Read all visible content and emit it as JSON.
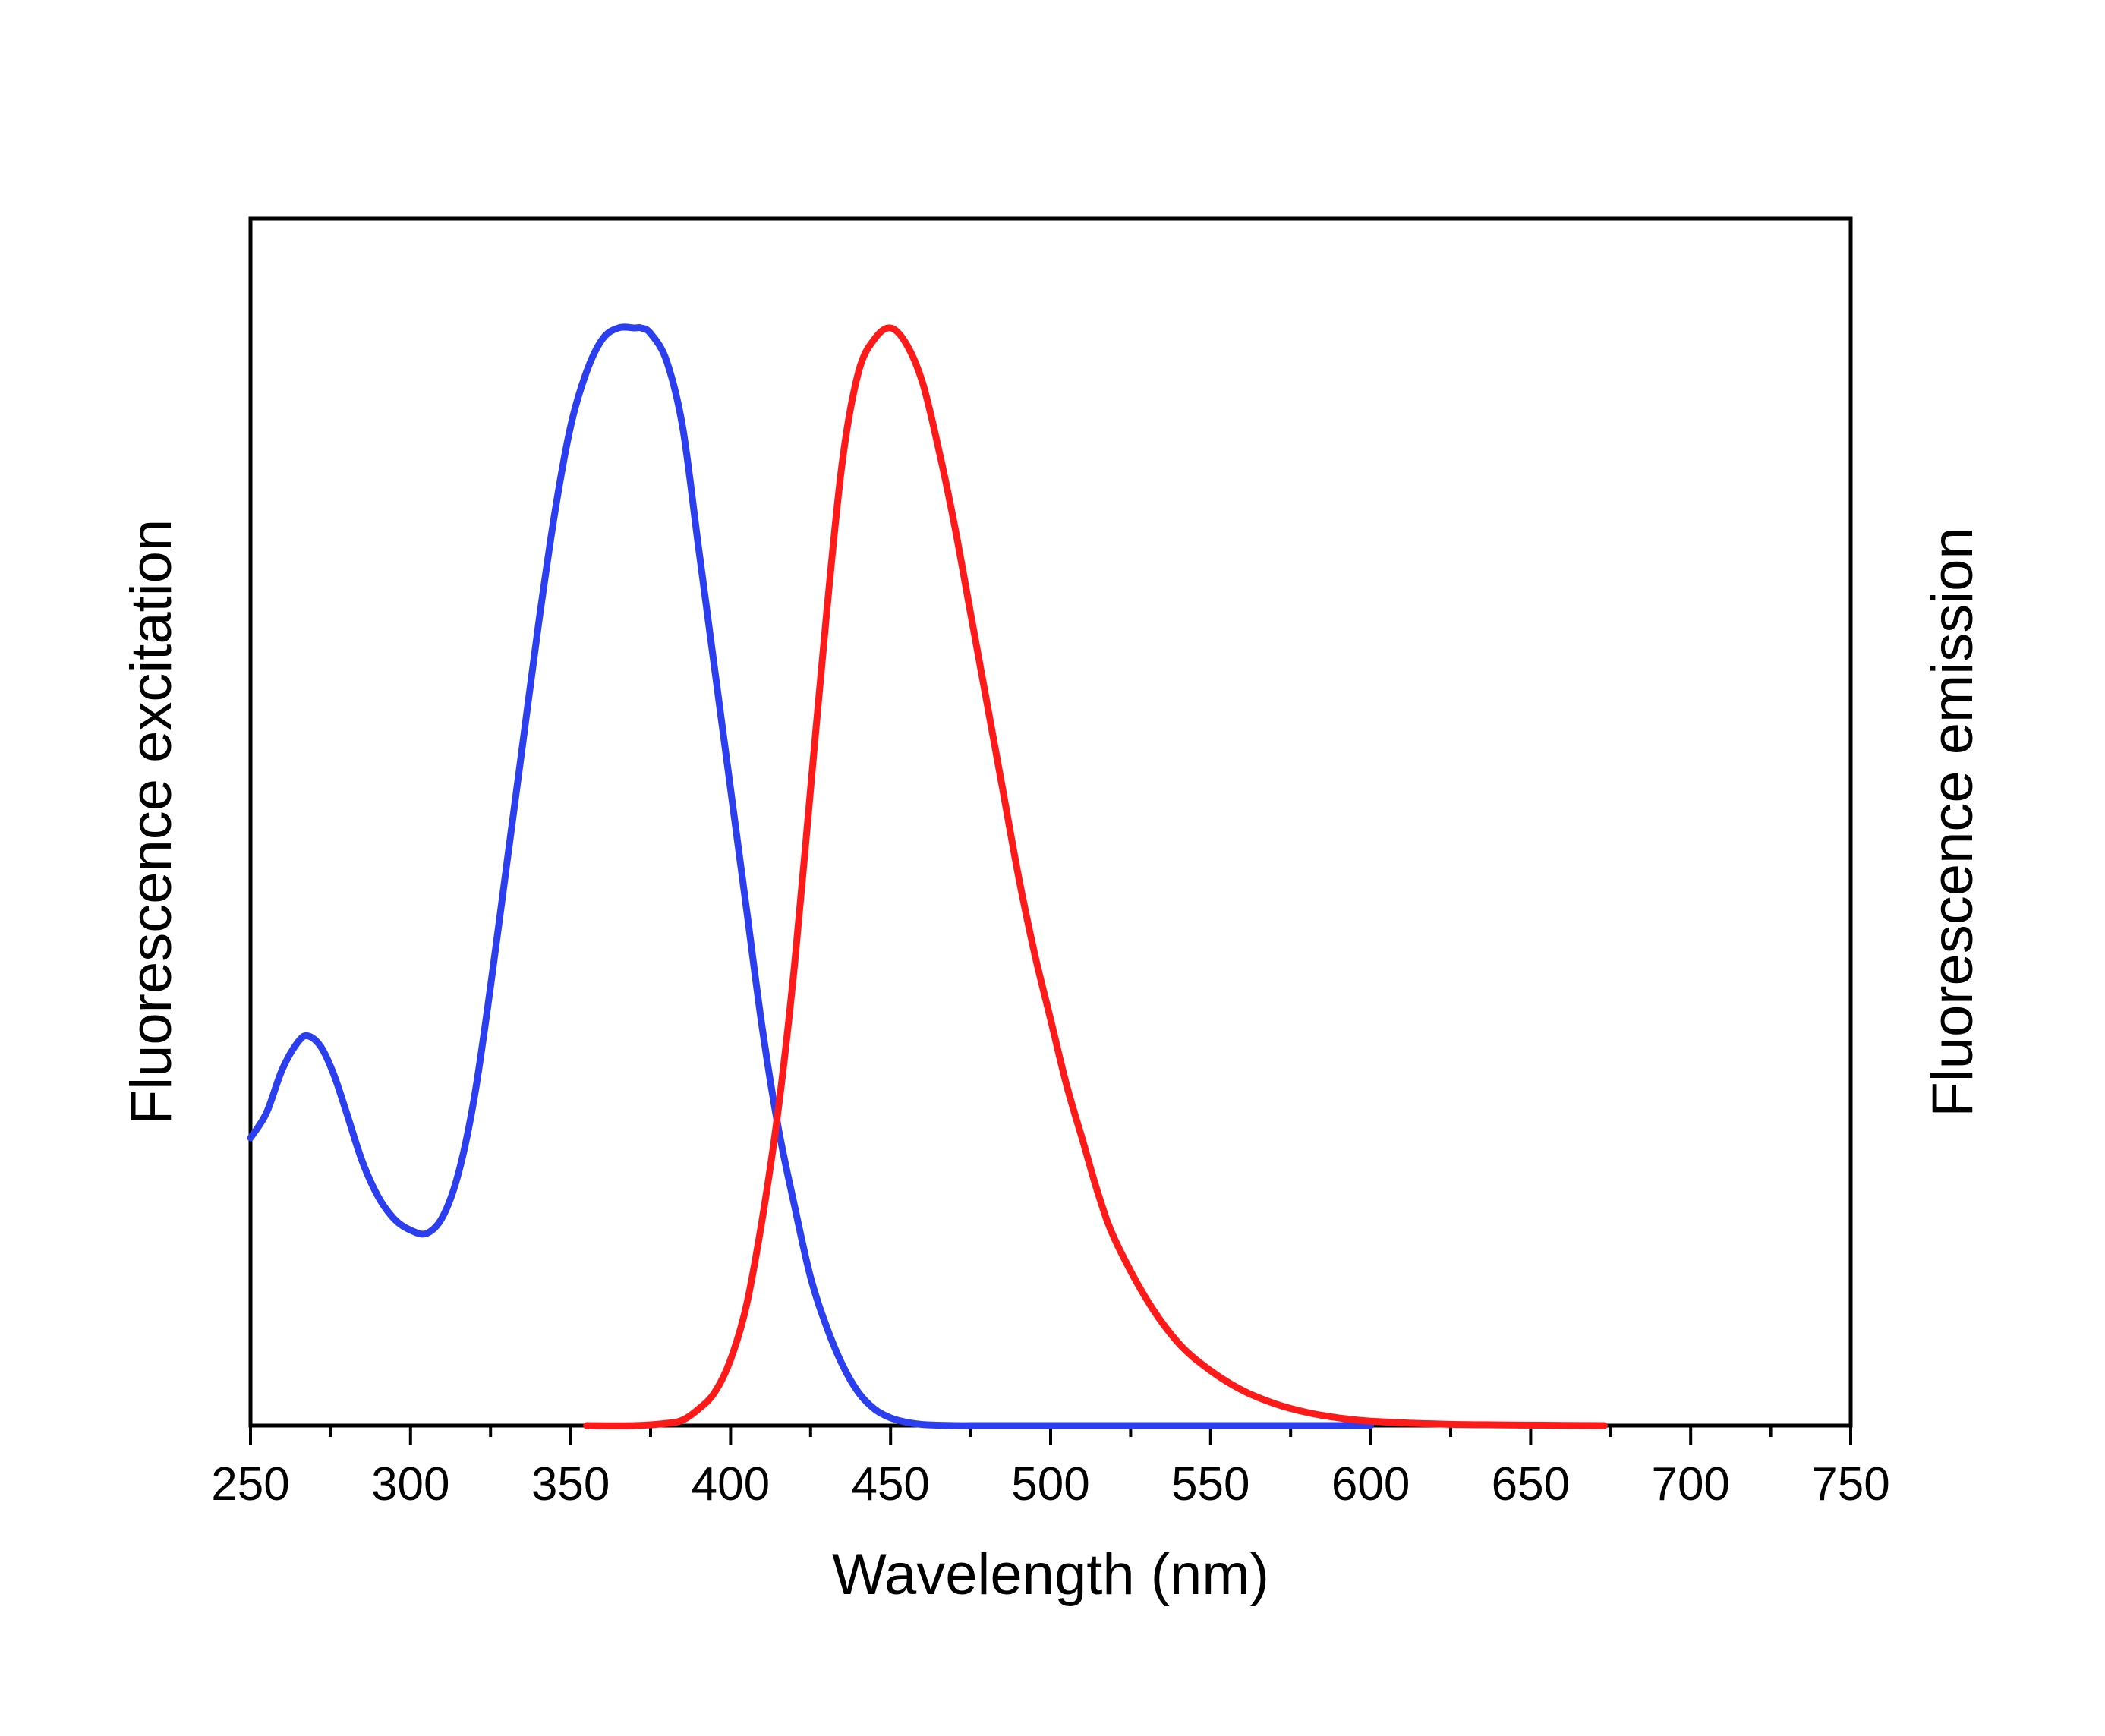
{
  "chart_data": {
    "type": "line",
    "xlabel": "Wavelength (nm)",
    "ylabel_left": "Fluorescence excitation",
    "ylabel_right": "Fluorescence emission",
    "xlim": [
      250,
      750
    ],
    "ylim": [
      0,
      1
    ],
    "x_ticks": [
      250,
      300,
      350,
      400,
      450,
      500,
      550,
      600,
      650,
      700,
      750
    ],
    "x_tick_labels": [
      "250",
      "300",
      "350",
      "400",
      "450",
      "500",
      "550",
      "600",
      "650",
      "700",
      "750"
    ],
    "x_minor_step": 25,
    "y_ticks_shown": false,
    "grid": false,
    "series": [
      {
        "color": "#2b3ff0",
        "x": [
          250,
          255,
          260,
          265,
          268,
          272,
          276,
          280,
          285,
          290,
          295,
          300,
          305,
          310,
          315,
          320,
          325,
          330,
          335,
          340,
          345,
          350,
          355,
          360,
          365,
          370,
          372,
          375,
          380,
          385,
          390,
          395,
          400,
          405,
          410,
          415,
          420,
          425,
          430,
          435,
          440,
          445,
          450,
          455,
          460,
          470,
          480,
          500,
          550,
          600
        ],
        "y": [
          0.262,
          0.285,
          0.325,
          0.35,
          0.355,
          0.345,
          0.32,
          0.285,
          0.24,
          0.208,
          0.188,
          0.178,
          0.175,
          0.19,
          0.23,
          0.3,
          0.4,
          0.51,
          0.62,
          0.73,
          0.83,
          0.91,
          0.96,
          0.99,
          1.0,
          1.0,
          1.0,
          0.995,
          0.97,
          0.91,
          0.8,
          0.69,
          0.58,
          0.47,
          0.36,
          0.27,
          0.2,
          0.135,
          0.09,
          0.055,
          0.03,
          0.015,
          0.007,
          0.003,
          0.001,
          0.0,
          0.0,
          0.0,
          0.0,
          0.0
        ]
      },
      {
        "color": "#ff1a1a",
        "x": [
          355,
          370,
          380,
          385,
          390,
          395,
          400,
          405,
          410,
          415,
          420,
          425,
          430,
          435,
          440,
          445,
          450,
          455,
          460,
          465,
          470,
          475,
          480,
          485,
          490,
          495,
          500,
          505,
          510,
          515,
          520,
          530,
          540,
          550,
          560,
          570,
          580,
          590,
          600,
          620,
          640,
          660,
          673
        ],
        "y": [
          0.0,
          0.0,
          0.002,
          0.005,
          0.015,
          0.03,
          0.06,
          0.11,
          0.19,
          0.29,
          0.42,
          0.58,
          0.74,
          0.88,
          0.96,
          0.99,
          1.0,
          0.985,
          0.95,
          0.89,
          0.82,
          0.74,
          0.66,
          0.58,
          0.5,
          0.43,
          0.37,
          0.31,
          0.26,
          0.21,
          0.17,
          0.115,
          0.075,
          0.05,
          0.032,
          0.02,
          0.012,
          0.007,
          0.004,
          0.0015,
          0.0006,
          0.0002,
          0.0
        ]
      }
    ]
  }
}
